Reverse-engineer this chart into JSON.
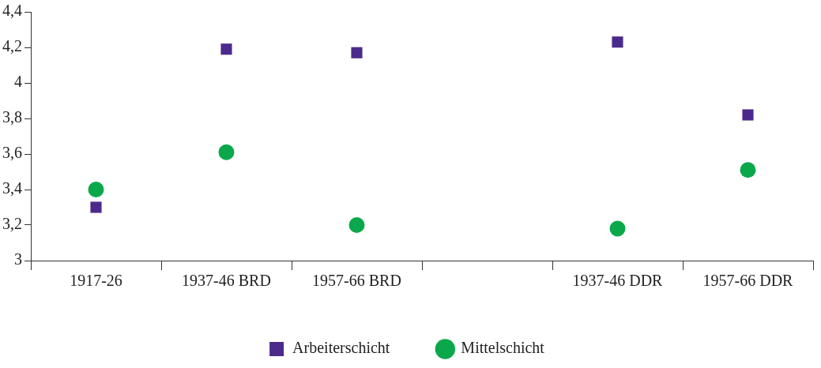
{
  "chart_data": {
    "type": "scatter",
    "categories": [
      "1917-26",
      "1937-46 BRD",
      "1957-66 BRD",
      null,
      "1937-46 DDR",
      "1957-66 DDR"
    ],
    "series": [
      {
        "name": "Arbeiterschicht",
        "color": "#4b2a8c",
        "marker": "square",
        "values": [
          3.3,
          4.19,
          4.17,
          null,
          4.23,
          3.82
        ]
      },
      {
        "name": "Mittelschicht",
        "color": "#0aa84a",
        "marker": "circle",
        "values": [
          3.4,
          3.61,
          3.2,
          null,
          3.18,
          3.51
        ]
      }
    ],
    "ylim": [
      3,
      4.4
    ],
    "yticks": [
      {
        "value": 3,
        "label": "3"
      },
      {
        "value": 3.2,
        "label": "3,2"
      },
      {
        "value": 3.4,
        "label": "3,4"
      },
      {
        "value": 3.6,
        "label": "3,6"
      },
      {
        "value": 3.8,
        "label": "3,8"
      },
      {
        "value": 4,
        "label": "4"
      },
      {
        "value": 4.2,
        "label": "4,2"
      },
      {
        "value": 4.4,
        "label": "4,4"
      }
    ],
    "grid": false,
    "legend": "bottom"
  }
}
